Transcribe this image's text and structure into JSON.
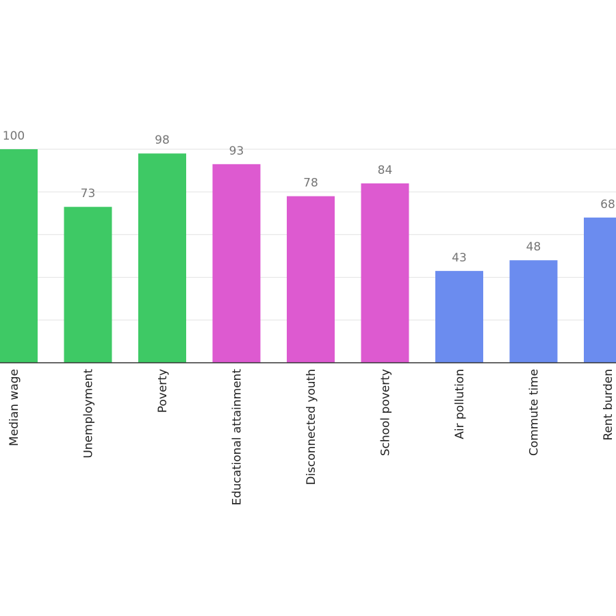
{
  "chart_data": {
    "type": "bar",
    "categories": [
      "Median wage",
      "Unemployment",
      "Poverty",
      "Educational attainment",
      "Disconnected youth",
      "School poverty",
      "Air pollution",
      "Commute time",
      "Rent burden"
    ],
    "values": [
      100,
      73,
      98,
      93,
      78,
      84,
      43,
      48,
      68
    ],
    "bar_colors": [
      "#3ec965",
      "#3ec965",
      "#3ec965",
      "#dd5ad0",
      "#dd5ad0",
      "#dd5ad0",
      "#6b8cef",
      "#6b8cef",
      "#6b8cef"
    ],
    "data_labels": [
      "100",
      "73",
      "98",
      "93",
      "78",
      "84",
      "43",
      "48",
      "68"
    ],
    "ylim": [
      0,
      100
    ],
    "grid": true,
    "title": "",
    "xlabel": "",
    "ylabel": ""
  }
}
